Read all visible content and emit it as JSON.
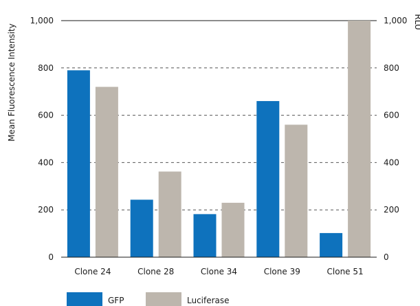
{
  "chart_data": {
    "type": "bar",
    "title": "",
    "categories": [
      "Clone 24",
      "Clone 28",
      "Clone 34",
      "Clone 39",
      "Clone 51"
    ],
    "series": [
      {
        "name": "GFP",
        "axis": "left",
        "color": "#0e72bd",
        "values": [
          790,
          243,
          182,
          660,
          102
        ]
      },
      {
        "name": "Luciferase",
        "axis": "right",
        "color": "#bdb6ad",
        "values": [
          720,
          362,
          230,
          560,
          1000
        ]
      }
    ],
    "ylabel": "Mean Fluorescence Intensity",
    "y2label": "RLU",
    "ylim": [
      0,
      1000
    ],
    "y2lim": [
      0,
      1000
    ],
    "yticks": [
      "0",
      "200",
      "400",
      "600",
      "800",
      "1,000"
    ],
    "y2ticks": [
      "0",
      "200",
      "400",
      "600",
      "800",
      "1,000"
    ],
    "grid": "dashed horizontal",
    "legend_position": "bottom-left"
  }
}
